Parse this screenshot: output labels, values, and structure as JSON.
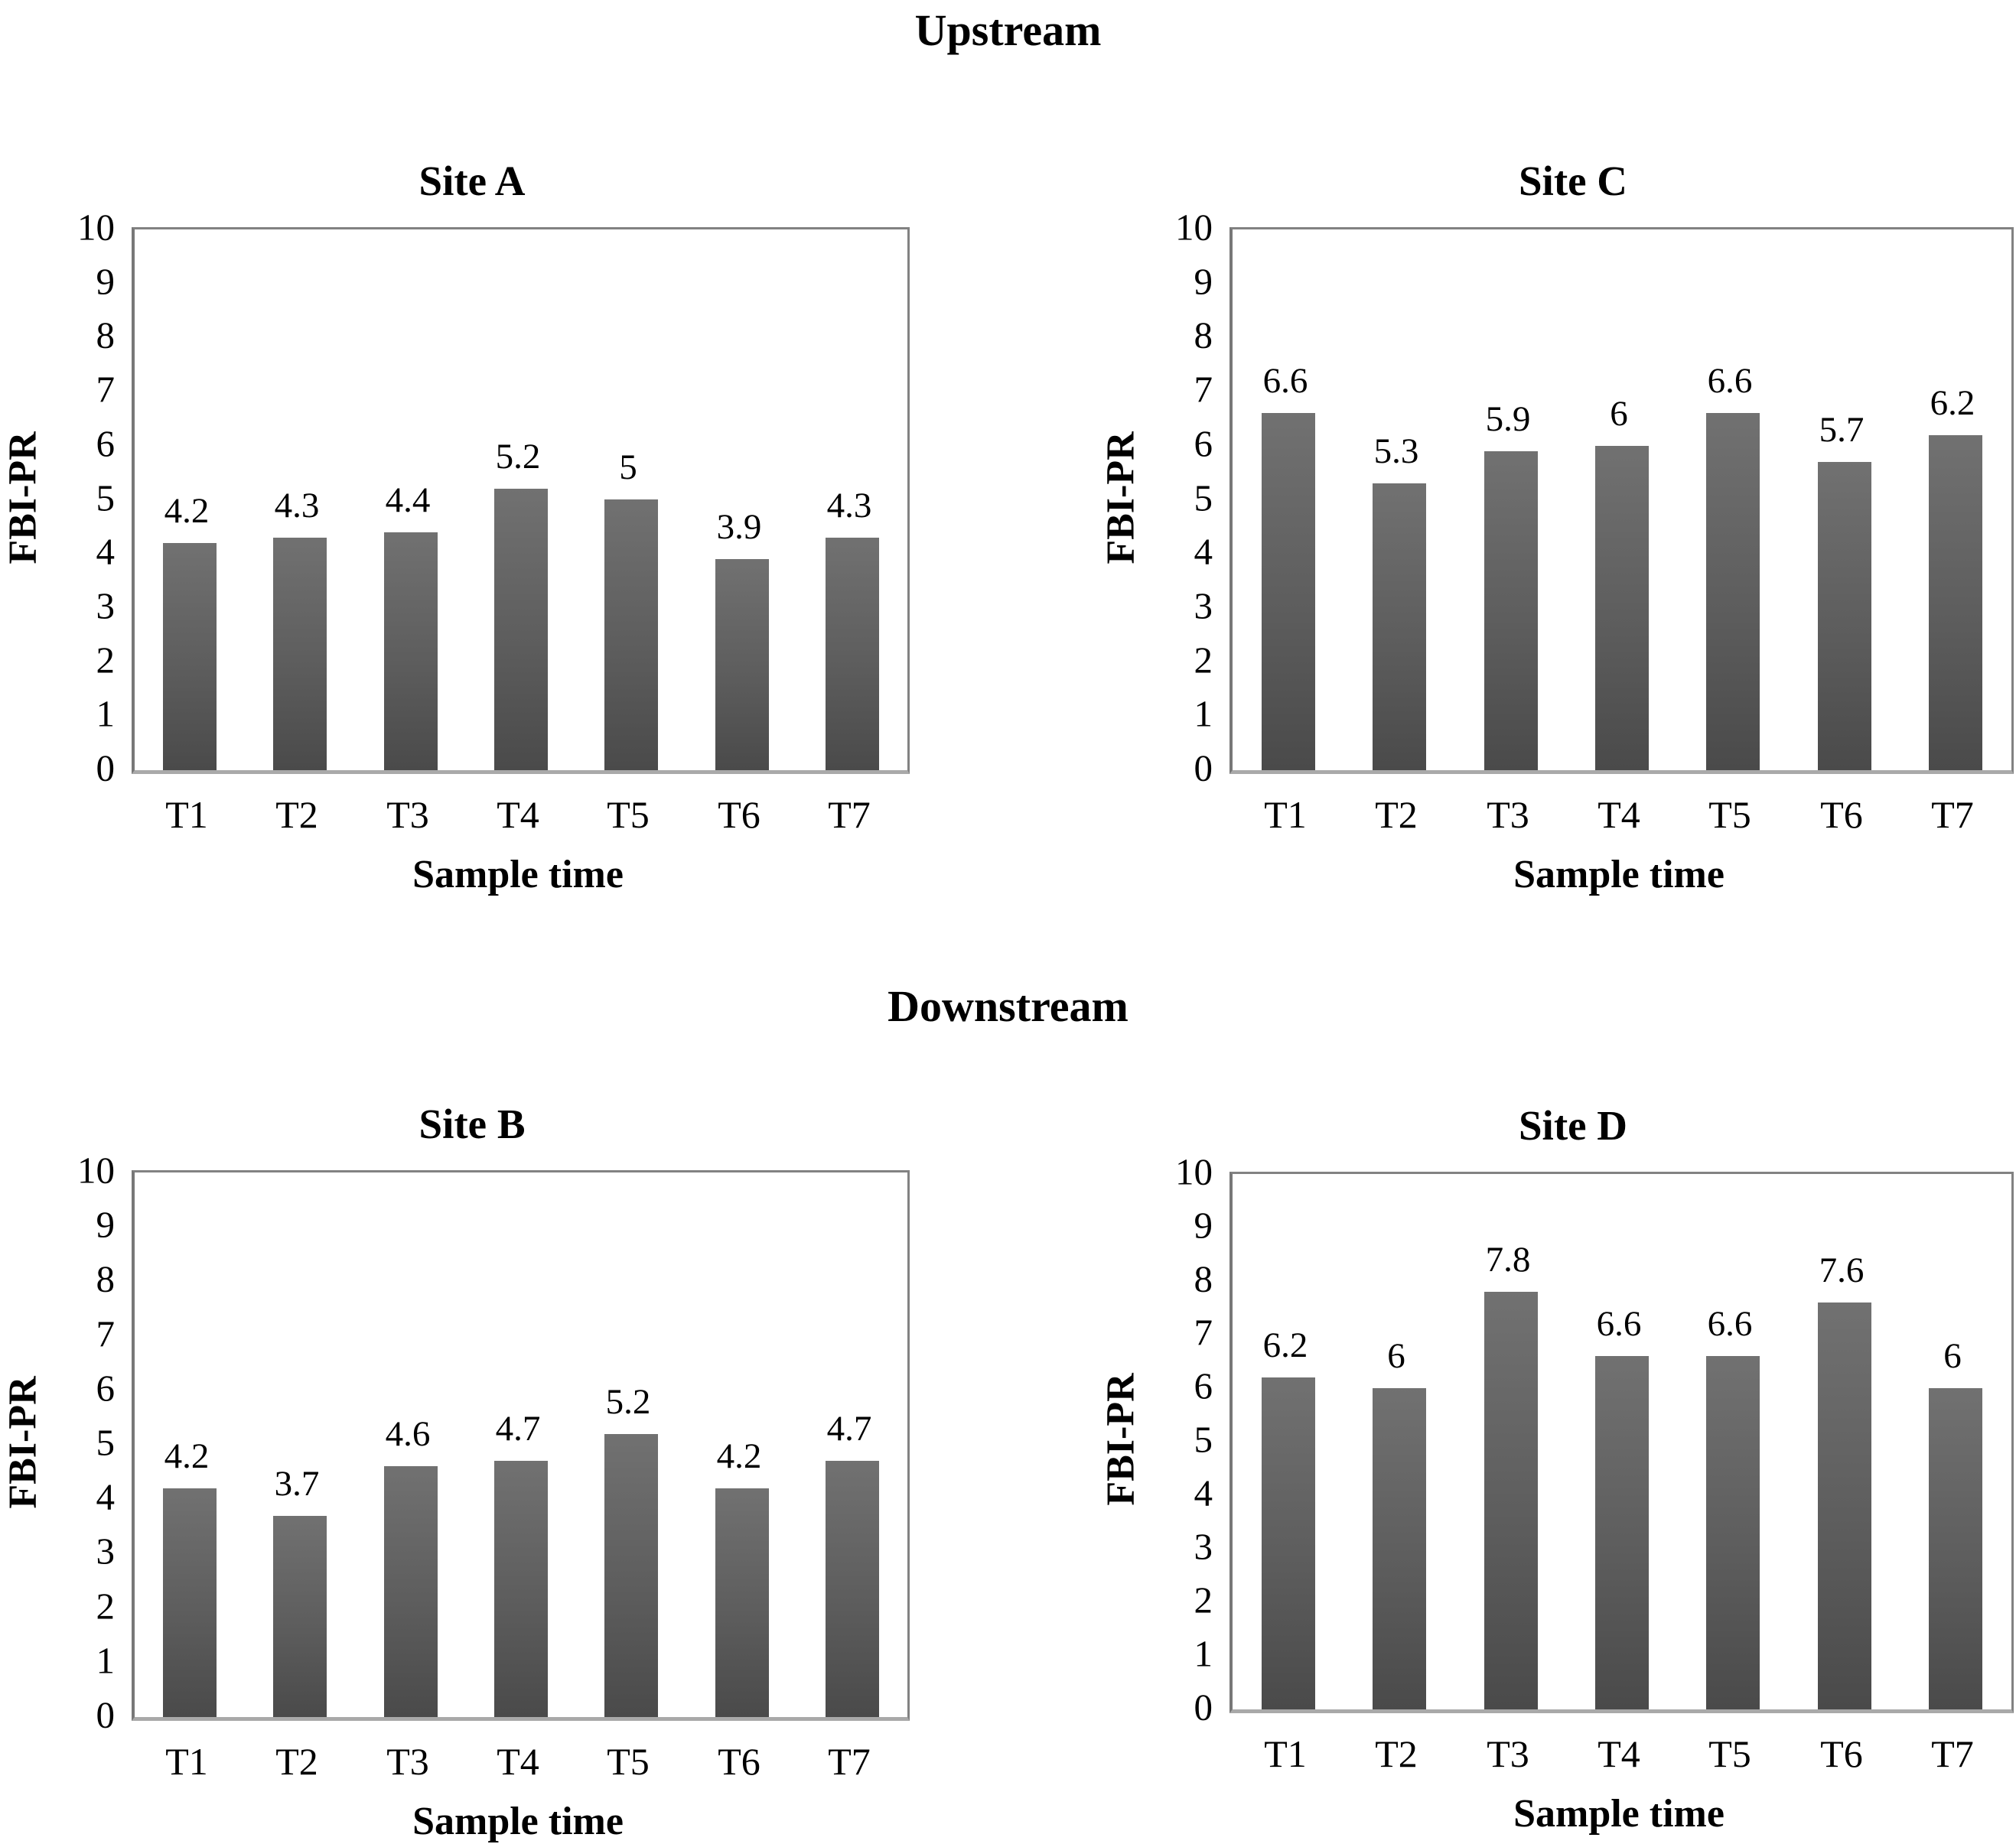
{
  "figure_titles": {
    "upstream": "Upstream",
    "downstream": "Downstream"
  },
  "chart_data": [
    {
      "id": "site-a",
      "section": "Upstream",
      "type": "bar",
      "title": "Site A",
      "xlabel": "Sample time",
      "ylabel": "FBI-PR",
      "categories": [
        "T1",
        "T2",
        "T3",
        "T4",
        "T5",
        "T6",
        "T7"
      ],
      "values": [
        4.2,
        4.3,
        4.4,
        5.2,
        5,
        3.9,
        4.3
      ],
      "value_labels": [
        "4.2",
        "4.3",
        "4.4",
        "5.2",
        "5",
        "3.9",
        "4.3"
      ],
      "ylim": [
        0,
        10
      ],
      "yticks": [
        0,
        1,
        2,
        3,
        4,
        5,
        6,
        7,
        8,
        9,
        10
      ],
      "grid": false,
      "legend": "none",
      "data_labels": true
    },
    {
      "id": "site-c",
      "section": "Upstream",
      "type": "bar",
      "title": "Site C",
      "xlabel": "Sample time",
      "ylabel": "FBI-PR",
      "categories": [
        "T1",
        "T2",
        "T3",
        "T4",
        "T5",
        "T6",
        "T7"
      ],
      "values": [
        6.6,
        5.3,
        5.9,
        6,
        6.6,
        5.7,
        6.2
      ],
      "value_labels": [
        "6.6",
        "5.3",
        "5.9",
        "6",
        "6.6",
        "5.7",
        "6.2"
      ],
      "ylim": [
        0,
        10
      ],
      "yticks": [
        0,
        1,
        2,
        3,
        4,
        5,
        6,
        7,
        8,
        9,
        10
      ],
      "grid": false,
      "legend": "none",
      "data_labels": true
    },
    {
      "id": "site-b",
      "section": "Downstream",
      "type": "bar",
      "title": "Site B",
      "xlabel": "Sample time",
      "ylabel": "FBI-PR",
      "categories": [
        "T1",
        "T2",
        "T3",
        "T4",
        "T5",
        "T6",
        "T7"
      ],
      "values": [
        4.2,
        3.7,
        4.6,
        4.7,
        5.2,
        4.2,
        4.7
      ],
      "value_labels": [
        "4.2",
        "3.7",
        "4.6",
        "4.7",
        "5.2",
        "4.2",
        "4.7"
      ],
      "ylim": [
        0,
        10
      ],
      "yticks": [
        0,
        1,
        2,
        3,
        4,
        5,
        6,
        7,
        8,
        9,
        10
      ],
      "grid": false,
      "legend": "none",
      "data_labels": true
    },
    {
      "id": "site-d",
      "section": "Downstream",
      "type": "bar",
      "title": "Site D",
      "xlabel": "Sample time",
      "ylabel": "FBI-PR",
      "categories": [
        "T1",
        "T2",
        "T3",
        "T4",
        "T5",
        "T6",
        "T7"
      ],
      "values": [
        6.2,
        6,
        7.8,
        6.6,
        6.6,
        7.6,
        6
      ],
      "value_labels": [
        "6.2",
        "6",
        "7.8",
        "6.6",
        "6.6",
        "7.6",
        "6"
      ],
      "ylim": [
        0,
        10
      ],
      "yticks": [
        0,
        1,
        2,
        3,
        4,
        5,
        6,
        7,
        8,
        9,
        10
      ],
      "grid": false,
      "legend": "none",
      "data_labels": true
    }
  ],
  "style": {
    "bar_color_top": "#717171",
    "bar_color_bottom": "#4a4a4a",
    "frame_color": "#828282",
    "baseline_color": "#a9a9a9",
    "text_color": "#000000",
    "background": "#ffffff"
  }
}
